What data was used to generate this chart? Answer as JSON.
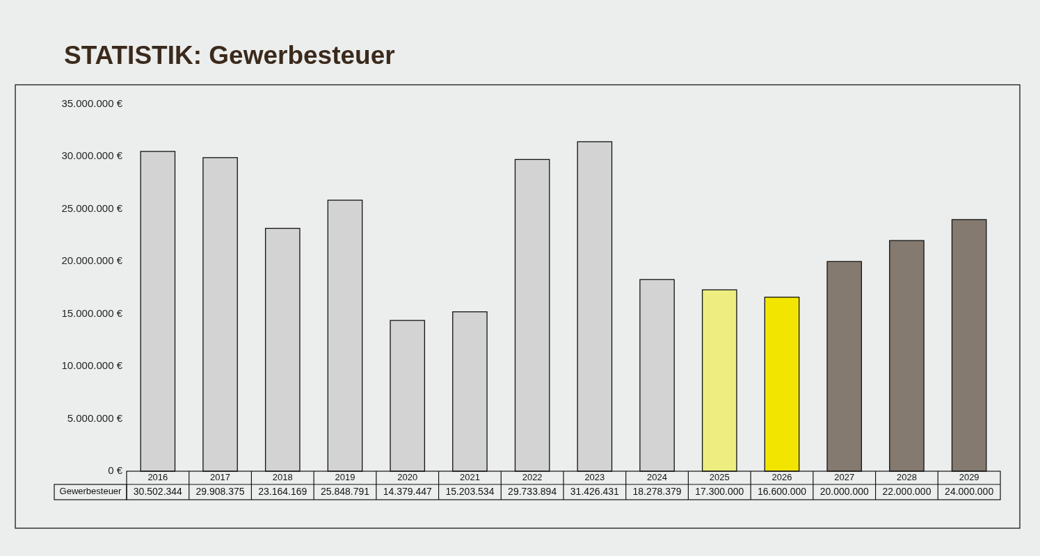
{
  "chart_data": {
    "type": "bar",
    "title": "STATISTIK: Gewerbesteuer",
    "categories": [
      "2016",
      "2017",
      "2018",
      "2019",
      "2020",
      "2021",
      "2022",
      "2023",
      "2024",
      "2025",
      "2026",
      "2027",
      "2028",
      "2029"
    ],
    "series": [
      {
        "name": "Gewerbesteuer",
        "colors": [
          "#d3d3d3",
          "#d3d3d3",
          "#d3d3d3",
          "#d3d3d3",
          "#d3d3d3",
          "#d3d3d3",
          "#d3d3d3",
          "#d3d3d3",
          "#d3d3d3",
          "#eeee80",
          "#f2e600",
          "#857a6f",
          "#857a6f",
          "#857a6f"
        ],
        "values": [
          30502344,
          29908375,
          23164169,
          25848791,
          14379447,
          15203534,
          29733894,
          31426431,
          18278379,
          17300000,
          16600000,
          20000000,
          22000000,
          24000000
        ],
        "value_labels": [
          "30.502.344",
          "29.908.375",
          "23.164.169",
          "25.848.791",
          "14.379.447",
          "15.203.534",
          "29.733.894",
          "31.426.431",
          "18.278.379",
          "17.300.000",
          "16.600.000",
          "20.000.000",
          "22.000.000",
          "24.000.000"
        ]
      }
    ],
    "ylim": [
      0,
      35000000
    ],
    "yticks": [
      {
        "value": 0,
        "label": "0 €"
      },
      {
        "value": 5000000,
        "label": "5.000.000 €"
      },
      {
        "value": 10000000,
        "label": "10.000.000 €"
      },
      {
        "value": 15000000,
        "label": "15.000.000 €"
      },
      {
        "value": 20000000,
        "label": "20.000.000 €"
      },
      {
        "value": 25000000,
        "label": "25.000.000 €"
      },
      {
        "value": 30000000,
        "label": "30.000.000 €"
      },
      {
        "value": 35000000,
        "label": "35.000.000 €"
      }
    ]
  }
}
